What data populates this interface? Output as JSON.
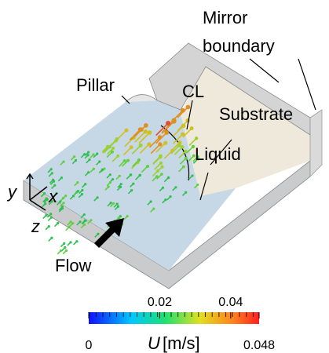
{
  "labels": {
    "mirror": "Mirror",
    "boundary": "boundary",
    "pillar": "Pillar",
    "cl": "CL",
    "substrate": "Substrate",
    "liquid": "Liquid",
    "flow": "Flow",
    "axis_y": "y",
    "axis_x": "x",
    "axis_z": "z"
  },
  "colorbar": {
    "symbol": "U",
    "unit": "[m/s]",
    "lim": [
      0,
      0.048
    ],
    "ticks": [
      0,
      0.02,
      0.04,
      0.048
    ]
  }
}
